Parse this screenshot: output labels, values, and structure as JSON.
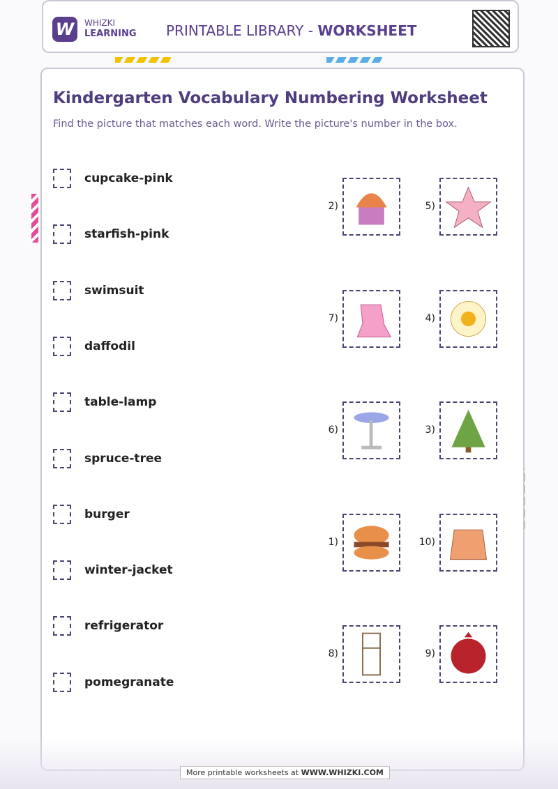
{
  "header": {
    "brand": "WHIZKI",
    "brand_sub": "LEARNING",
    "title": "PRINTABLE LIBRARY - ",
    "title_bold": "WORKSHEET"
  },
  "title": "Kindergarten Vocabulary Numbering Worksheet",
  "instructions": "Find the picture that matches each word. Write the picture's number in the box.",
  "words": [
    "cupcake-pink",
    "starfish-pink",
    "swimsuit",
    "daffodil",
    "table-lamp",
    "spruce-tree",
    "burger",
    "winter-jacket",
    "refrigerator",
    "pomegranate"
  ],
  "pictures": [
    "2)",
    "5)",
    "7)",
    "4)",
    "6)",
    "3)",
    "1)",
    "10)",
    "8)",
    "9)"
  ],
  "footer": {
    "text": "More printable worksheets at ",
    "link": "WWW.WHIZKI.COM"
  }
}
